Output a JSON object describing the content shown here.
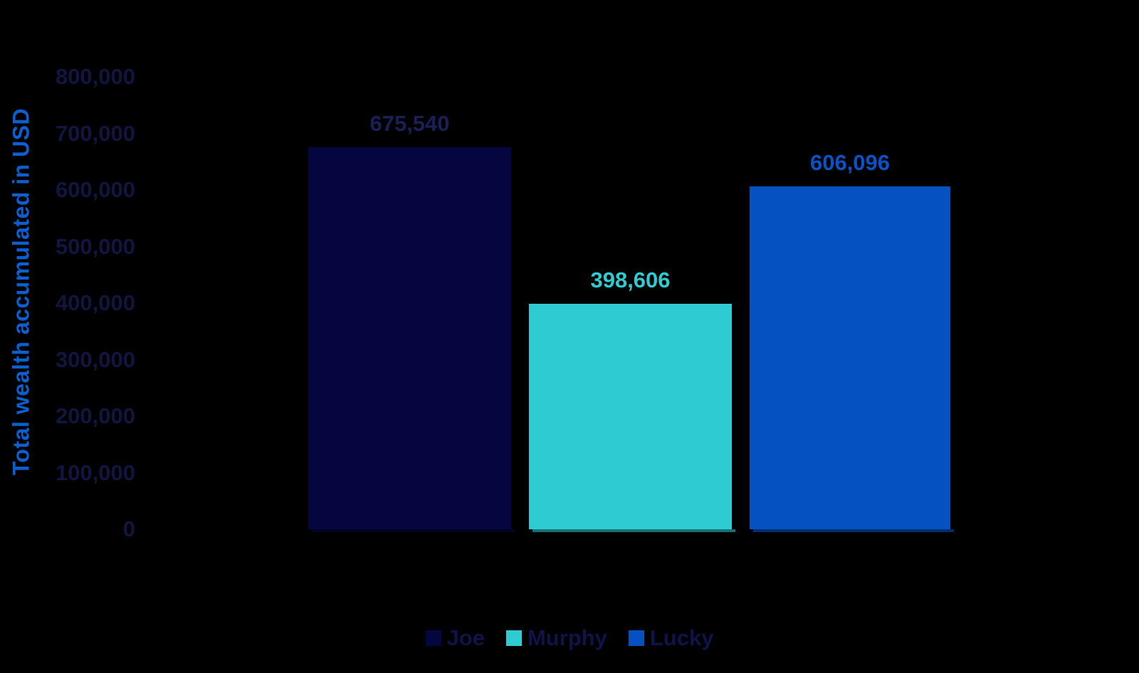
{
  "chart_data": {
    "type": "bar",
    "title": "",
    "categories": [
      ""
    ],
    "series": [
      {
        "name": "Joe",
        "values": [
          675540
        ],
        "data_label": "675,540",
        "color": "#050540",
        "label_color": "#1a1f55"
      },
      {
        "name": "Murphy",
        "values": [
          398606
        ],
        "data_label": "398,606",
        "color": "#2ecbd2",
        "label_color": "#2fcbd2"
      },
      {
        "name": "Lucky",
        "values": [
          606096
        ],
        "data_label": "606,096",
        "color": "#0551c2",
        "label_color": "#0a52c8"
      }
    ],
    "xlabel": "",
    "ylabel": "Total wealth accumulated in USD",
    "ylim": [
      0,
      800000
    ],
    "ytick_step": 100000,
    "ytick_labels": [
      "0",
      "100,000",
      "200,000",
      "300,000",
      "400,000",
      "500,000",
      "600,000",
      "700,000",
      "800,000"
    ],
    "grid": false,
    "legend": {
      "position": "bottom",
      "entries": [
        "Joe",
        "Murphy",
        "Lucky"
      ]
    },
    "colors": {
      "background": "#000000",
      "axis_title": "#0a5fd1",
      "tick_label": "#111540",
      "legend_text": "#101249"
    }
  }
}
